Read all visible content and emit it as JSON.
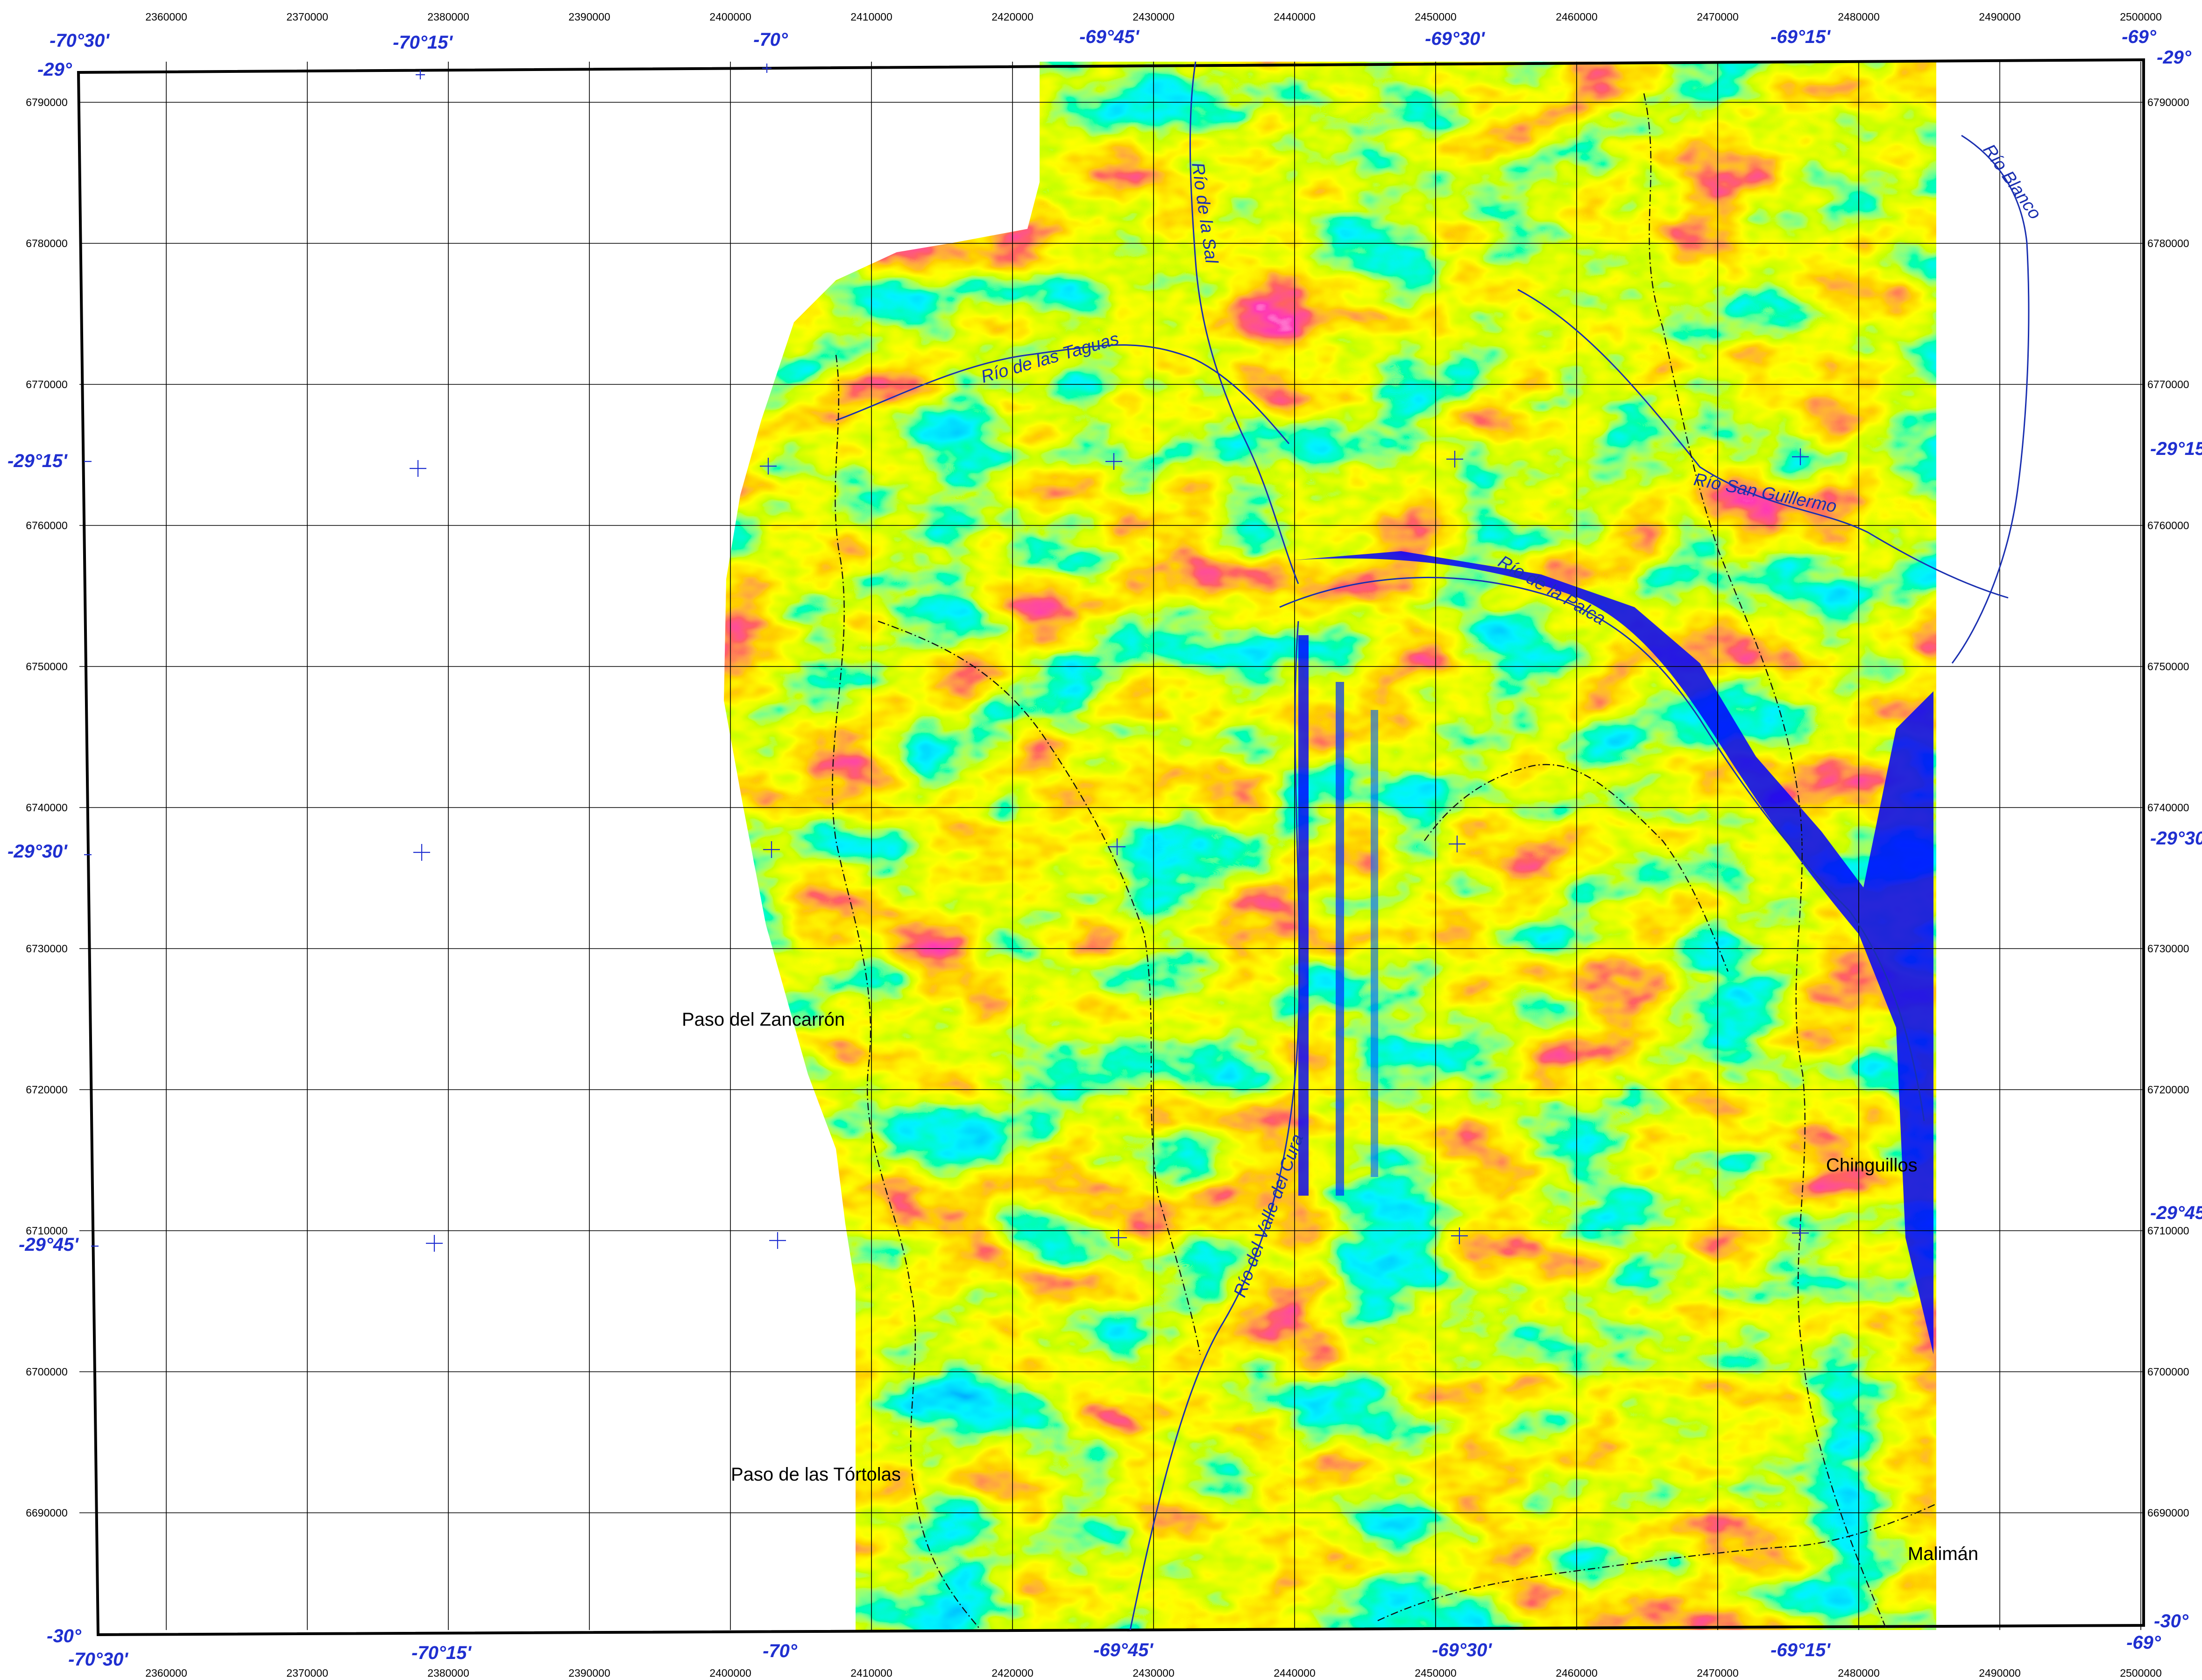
{
  "map": {
    "easting_ticks": [
      "2360000",
      "2370000",
      "2380000",
      "2390000",
      "2400000",
      "2410000",
      "2420000",
      "2430000",
      "2440000",
      "2450000",
      "2460000",
      "2470000",
      "2480000",
      "2490000",
      "2500000"
    ],
    "northing_ticks": [
      "6790000",
      "6780000",
      "6770000",
      "6760000",
      "6750000",
      "6740000",
      "6730000",
      "6720000",
      "6710000",
      "6700000",
      "6690000"
    ],
    "longitude_labels": [
      "-70°30'",
      "-70°15'",
      "-70°",
      "-69°45'",
      "-69°30'",
      "-69°15'",
      "-69°"
    ],
    "latitude_labels": [
      "-29°",
      "-29°15'",
      "-29°30'",
      "-29°45'",
      "-30°"
    ],
    "river_labels": {
      "sal": "Río de la Sal",
      "taguas": "Río de las Taguas",
      "blanco": "Río Blanco",
      "san_guillermo": "Río San Guillermo",
      "palca": "Río de la Palca",
      "valle_del_cura": "Río del Valle del Cura"
    },
    "place_labels": {
      "zancarron": "Paso del Zancarrón",
      "tortolas": "Paso de las Tórtolas",
      "chinguillos": "Chinguillos",
      "maliman": "Malimán"
    },
    "colors": {
      "grid": "#000000",
      "graticule": "#1f2fd0",
      "river": "#1a2fb0",
      "border": "#000000",
      "anomaly_scale": [
        "#0000ff",
        "#0096ff",
        "#00e6ff",
        "#00ff64",
        "#8cff00",
        "#ffff00",
        "#ff9600",
        "#ff1e1e",
        "#ff0a78",
        "#ff8cff"
      ]
    }
  }
}
